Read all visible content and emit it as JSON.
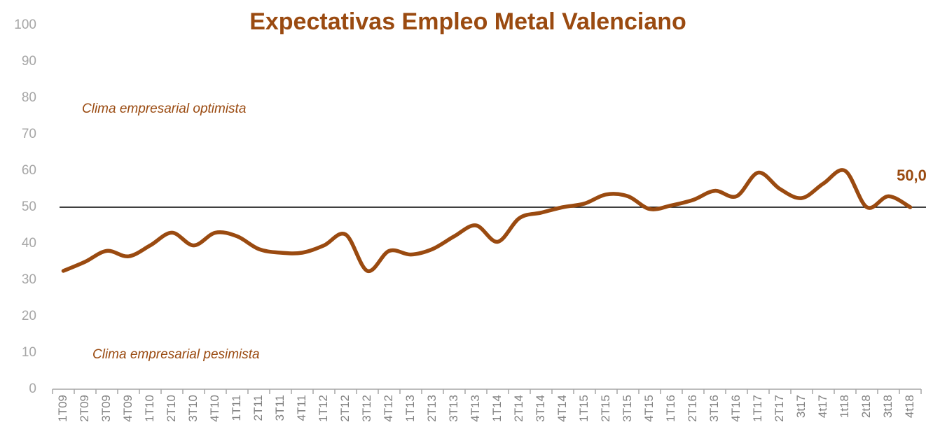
{
  "chart_data": {
    "type": "line",
    "title": "Expectativas Empleo Metal Valenciano",
    "annotations": [
      "Clima empresarial optimista",
      "Clima empresarial pesimista"
    ],
    "categories": [
      "1T09",
      "2T09",
      "3T09",
      "4T09",
      "1T10",
      "2T10",
      "3T10",
      "4T10",
      "1T11",
      "2T11",
      "3T11",
      "4T11",
      "1T12",
      "2T12",
      "3T12",
      "4T12",
      "1T13",
      "2T13",
      "3T13",
      "4T13",
      "1T14",
      "2T14",
      "3T14",
      "4T14",
      "1T15",
      "2T15",
      "3T15",
      "4T15",
      "1T16",
      "2T16",
      "3T16",
      "4T16",
      "1T17",
      "2T17",
      "3t17",
      "4t17",
      "1t18",
      "2t18",
      "3t18",
      "4t18"
    ],
    "values": [
      32.5,
      35,
      38,
      36.5,
      39.5,
      43,
      39.5,
      43,
      42,
      38.5,
      37.5,
      37.5,
      39.5,
      42.5,
      32.5,
      38,
      37,
      38.5,
      42,
      45,
      40.5,
      47,
      48.5,
      50,
      51,
      53.5,
      53,
      49.5,
      50.5,
      52,
      54.5,
      53,
      59.5,
      55,
      52.5,
      56.5,
      60,
      50,
      53,
      50
    ],
    "value_labels": [
      null,
      null,
      null,
      null,
      null,
      null,
      null,
      null,
      null,
      null,
      null,
      null,
      null,
      null,
      null,
      null,
      null,
      null,
      null,
      null,
      null,
      null,
      null,
      null,
      null,
      null,
      null,
      null,
      null,
      null,
      null,
      null,
      null,
      null,
      null,
      null,
      null,
      null,
      null,
      "50,0"
    ],
    "color": "#9a4a10",
    "reference_line": 50,
    "ylim": [
      0,
      100
    ],
    "yticks": [
      0,
      10,
      20,
      30,
      40,
      50,
      60,
      70,
      80,
      90,
      100
    ],
    "grid": false
  }
}
